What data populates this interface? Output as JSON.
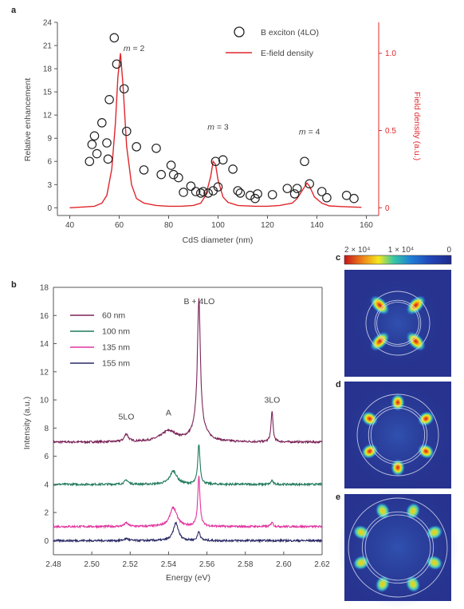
{
  "panel_labels": {
    "a": "a",
    "b": "b",
    "c": "c",
    "d": "d",
    "e": "e"
  },
  "chart_data": [
    {
      "id": "a",
      "type": "scatter",
      "xlabel": "CdS diameter (nm)",
      "ylabel": "Relative enhancement",
      "ylabel_right": "Field density (a.u.)",
      "xlim": [
        35,
        165
      ],
      "ylim": [
        -1,
        24
      ],
      "ylim_right": [
        -0.05,
        1.2
      ],
      "x_ticks": [
        40,
        60,
        80,
        100,
        120,
        140,
        160
      ],
      "y_ticks": [
        0,
        3,
        6,
        9,
        12,
        15,
        18,
        21,
        24
      ],
      "y_ticks_right": [
        0,
        0.5,
        1.0
      ],
      "y_tick_labels_right": [
        "0",
        "0.5",
        "1.0"
      ],
      "legend": [
        {
          "label": "B exciton (4LO)",
          "marker": "open-circle",
          "color": "#222222"
        },
        {
          "label": "E-field density",
          "marker": "line",
          "color": "#e0262b"
        }
      ],
      "annotations": [
        {
          "text": "m = 2",
          "x": 66,
          "y": 20.3
        },
        {
          "text": "m = 3",
          "x": 100,
          "y": 10.1
        },
        {
          "text": "m = 4",
          "x": 137,
          "y": 9.5
        }
      ],
      "series": [
        {
          "name": "B exciton (4LO)",
          "points": [
            [
              48,
              6
            ],
            [
              49,
              8.2
            ],
            [
              50,
              9.3
            ],
            [
              51,
              7
            ],
            [
              53,
              11
            ],
            [
              55,
              8.4
            ],
            [
              55.5,
              6.3
            ],
            [
              56,
              14
            ],
            [
              58,
              22
            ],
            [
              59,
              18.6
            ],
            [
              62,
              15.4
            ],
            [
              63,
              9.9
            ],
            [
              67,
              7.9
            ],
            [
              70,
              4.9
            ],
            [
              75,
              7.7
            ],
            [
              77,
              4.3
            ],
            [
              81,
              5.5
            ],
            [
              82,
              4.3
            ],
            [
              84,
              3.9
            ],
            [
              86,
              2
            ],
            [
              89,
              2.8
            ],
            [
              91,
              2.1
            ],
            [
              93,
              1.9
            ],
            [
              94,
              2.1
            ],
            [
              96,
              1.9
            ],
            [
              98,
              2.2
            ],
            [
              99,
              6
            ],
            [
              100,
              2.7
            ],
            [
              102,
              6.2
            ],
            [
              106,
              5
            ],
            [
              108,
              2.2
            ],
            [
              109,
              1.9
            ],
            [
              113,
              1.6
            ],
            [
              115,
              1.2
            ],
            [
              116,
              1.8
            ],
            [
              122,
              1.7
            ],
            [
              128,
              2.5
            ],
            [
              131,
              1.8
            ],
            [
              132,
              2.5
            ],
            [
              135,
              6
            ],
            [
              137,
              3.1
            ],
            [
              142,
              2.1
            ],
            [
              144,
              1.3
            ],
            [
              152,
              1.6
            ],
            [
              155,
              1.2
            ]
          ]
        },
        {
          "name": "E-field density",
          "axis": "right",
          "points": [
            [
              40,
              0
            ],
            [
              45,
              0.005
            ],
            [
              50,
              0.01
            ],
            [
              53,
              0.03
            ],
            [
              55,
              0.08
            ],
            [
              57,
              0.25
            ],
            [
              58.5,
              0.55
            ],
            [
              59.5,
              0.85
            ],
            [
              60.5,
              1.0
            ],
            [
              61.5,
              0.8
            ],
            [
              63,
              0.4
            ],
            [
              65,
              0.15
            ],
            [
              67,
              0.06
            ],
            [
              70,
              0.03
            ],
            [
              75,
              0.015
            ],
            [
              80,
              0.01
            ],
            [
              85,
              0.01
            ],
            [
              90,
              0.015
            ],
            [
              93,
              0.03
            ],
            [
              95,
              0.08
            ],
            [
              97,
              0.2
            ],
            [
              98,
              0.3
            ],
            [
              99,
              0.28
            ],
            [
              100,
              0.18
            ],
            [
              102,
              0.07
            ],
            [
              104,
              0.035
            ],
            [
              108,
              0.015
            ],
            [
              115,
              0.01
            ],
            [
              120,
              0.01
            ],
            [
              125,
              0.015
            ],
            [
              130,
              0.03
            ],
            [
              132,
              0.06
            ],
            [
              134,
              0.11
            ],
            [
              136,
              0.16
            ],
            [
              137,
              0.14
            ],
            [
              139,
              0.07
            ],
            [
              142,
              0.03
            ],
            [
              145,
              0.012
            ],
            [
              150,
              0.008
            ],
            [
              155,
              0.005
            ],
            [
              158,
              0.003
            ]
          ]
        }
      ]
    },
    {
      "id": "b",
      "type": "line",
      "xlabel": "Energy (eV)",
      "ylabel": "Intensity (a.u.)",
      "xlim": [
        2.48,
        2.62
      ],
      "ylim": [
        -1,
        18
      ],
      "x_ticks": [
        2.48,
        2.5,
        2.52,
        2.54,
        2.56,
        2.58,
        2.6,
        2.62
      ],
      "x_tick_labels": [
        "2.48",
        "2.50",
        "2.52",
        "2.54",
        "2.56",
        "2.58",
        "2.60",
        "2.62"
      ],
      "y_ticks": [
        0,
        2,
        4,
        6,
        8,
        10,
        12,
        14,
        16,
        18
      ],
      "annotations": [
        {
          "text": "B + 4LO",
          "x": 2.556,
          "y": 16.8
        },
        {
          "text": "5LO",
          "x": 2.518,
          "y": 8.6
        },
        {
          "text": "A",
          "x": 2.54,
          "y": 8.9
        },
        {
          "text": "3LO",
          "x": 2.594,
          "y": 9.8
        }
      ],
      "series": [
        {
          "name": "60 nm",
          "color": "#7b2458",
          "baseline": 7.0,
          "peaks": [
            [
              2.518,
              0.55,
              0.0012
            ],
            [
              2.54,
              0.75,
              0.005
            ],
            [
              2.5558,
              9.2,
              0.0009
            ],
            [
              2.5558,
              1.0,
              0.004
            ],
            [
              2.5939,
              2.2,
              0.0006
            ]
          ]
        },
        {
          "name": "100 nm",
          "color": "#1f7a5a",
          "baseline": 4.0,
          "peaks": [
            [
              2.518,
              0.3,
              0.0012
            ],
            [
              2.5425,
              0.95,
              0.0022
            ],
            [
              2.5558,
              2.85,
              0.0007
            ],
            [
              2.5939,
              0.3,
              0.0006
            ]
          ]
        },
        {
          "name": "135 nm",
          "color": "#e0359e",
          "baseline": 1.0,
          "peaks": [
            [
              2.518,
              0.25,
              0.0012
            ],
            [
              2.5425,
              1.35,
              0.0022
            ],
            [
              2.5558,
              3.55,
              0.0007
            ],
            [
              2.5939,
              0.35,
              0.0006
            ]
          ]
        },
        {
          "name": "155 nm",
          "color": "#2a2a66",
          "baseline": 0.0,
          "peaks": [
            [
              2.518,
              0.15,
              0.0012
            ],
            [
              2.5438,
              1.25,
              0.0016
            ],
            [
              2.5558,
              0.65,
              0.0008
            ]
          ]
        }
      ]
    },
    {
      "id": "c-e",
      "type": "heatmap",
      "colorbar_labels": [
        "2 × 10⁴",
        "1 × 10⁴",
        "0"
      ],
      "maps": [
        {
          "id": "c",
          "mode": "m = 2",
          "lobes": 4
        },
        {
          "id": "d",
          "mode": "m = 3",
          "lobes": 6
        },
        {
          "id": "e",
          "mode": "m = 4",
          "lobes": 8
        }
      ]
    }
  ]
}
